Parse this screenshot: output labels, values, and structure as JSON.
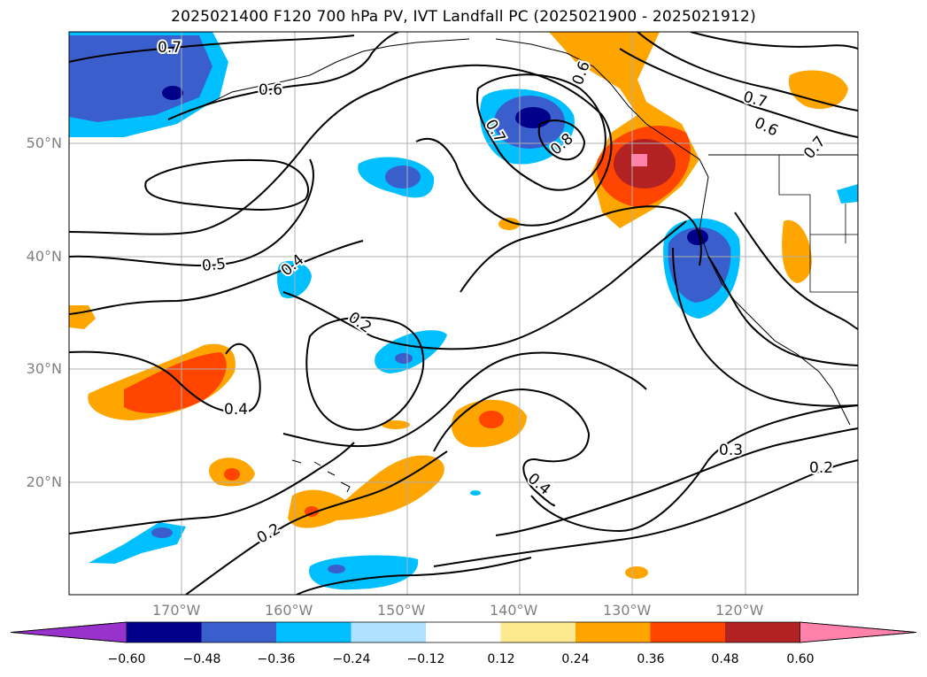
{
  "title": "2025021400 F120 700 hPa PV, IVT Landfall PC (2025021900 - 2025021912)",
  "map": {
    "lat_labels": [
      "50°N",
      "40°N",
      "30°N",
      "20°N"
    ],
    "lon_labels": [
      "170°W",
      "160°W",
      "150°W",
      "140°W",
      "130°W",
      "120°W"
    ],
    "contour_labels": [
      "0.7",
      "0.6",
      "0.7",
      "0.8",
      "0.6",
      "0.7",
      "0.6",
      "0.7",
      "0.5",
      "0.4",
      "0.2",
      "0.4",
      "0.4",
      "0.3",
      "0.2",
      "0.2"
    ]
  },
  "colorbar": {
    "ticks": [
      "−0.60",
      "−0.48",
      "−0.36",
      "−0.24",
      "−0.12",
      "0.12",
      "0.24",
      "0.36",
      "0.48",
      "0.60"
    ],
    "colors": [
      "#9932cc",
      "#00008b",
      "#3a5fcd",
      "#00bfff",
      "#b0e2ff",
      "#ffffff",
      "#fde98d",
      "#ffa500",
      "#ff4500",
      "#b22222",
      "#ff82ab"
    ]
  }
}
